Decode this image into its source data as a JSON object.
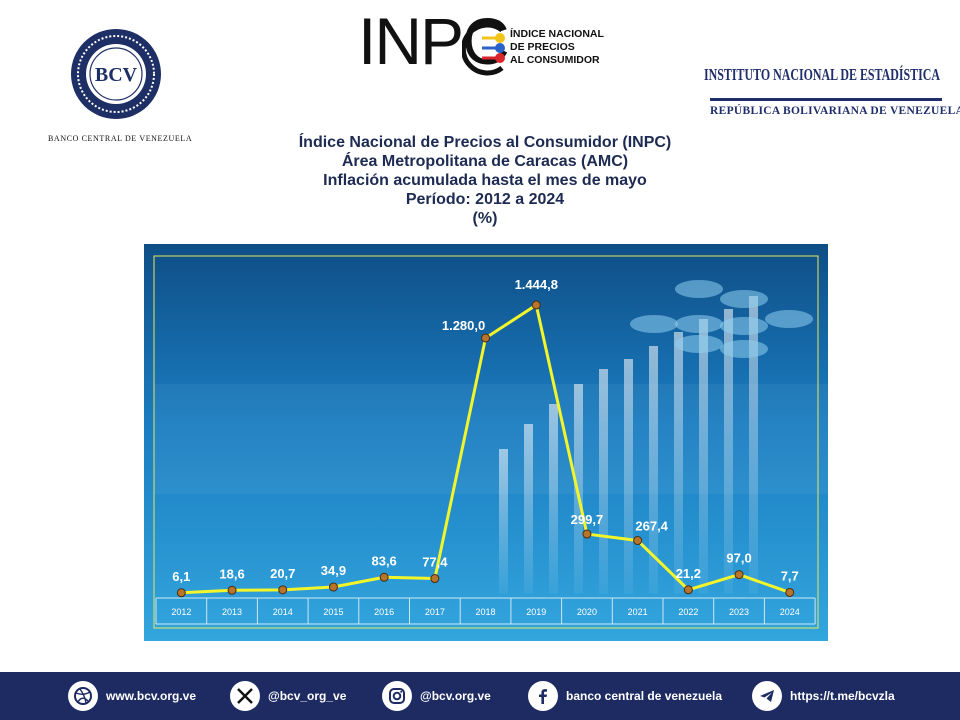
{
  "header": {
    "bcv_caption": "BANCO CENTRAL DE VENEZUELA",
    "bcv_seal_text": "BCV",
    "inpc_word": "INPC",
    "inpc_lines": [
      "ÍNDICE NACIONAL",
      "DE PRECIOS",
      "AL CONSUMIDOR"
    ],
    "ine_title": "INSTITUTO NACIONAL DE ESTADÍSTICA",
    "ine_subtitle": "REPÚBLICA BOLIVARIANA DE VENEZUELA"
  },
  "titles": {
    "line1": "Índice Nacional de Precios al Consumidor (INPC)",
    "line2": "Área Metropolitana de Caracas (AMC)",
    "line3": "Inflación acumulada hasta el mes de mayo",
    "line4": "Período: 2012 a 2024",
    "line5": "(%)"
  },
  "chart_data": {
    "type": "line",
    "categories": [
      "2012",
      "2013",
      "2014",
      "2015",
      "2016",
      "2017",
      "2018",
      "2019",
      "2020",
      "2021",
      "2022",
      "2023",
      "2024"
    ],
    "values": [
      6.1,
      18.6,
      20.7,
      34.9,
      83.6,
      77.4,
      1280.0,
      1444.8,
      299.7,
      267.4,
      21.2,
      97.0,
      7.7
    ],
    "data_labels": [
      "6,1",
      "18,6",
      "20,7",
      "34,9",
      "83,6",
      "77,4",
      "1.280,0",
      "1.444,8",
      "299,7",
      "267,4",
      "21,2",
      "97,0",
      "7,7"
    ],
    "ylim": [
      0,
      1550
    ],
    "line_color": "#f2f52a",
    "marker_color": "#b8742a"
  },
  "footer": {
    "items": [
      {
        "icon": "dribbble-icon",
        "label": "www.bcv.org.ve"
      },
      {
        "icon": "x-icon",
        "label": "@bcv_org_ve"
      },
      {
        "icon": "instagram-icon",
        "label": "@bcv.org.ve"
      },
      {
        "icon": "facebook-icon",
        "label": "banco central de venezuela"
      },
      {
        "icon": "telegram-icon",
        "label": "https://t.me/bcvzla"
      }
    ]
  }
}
